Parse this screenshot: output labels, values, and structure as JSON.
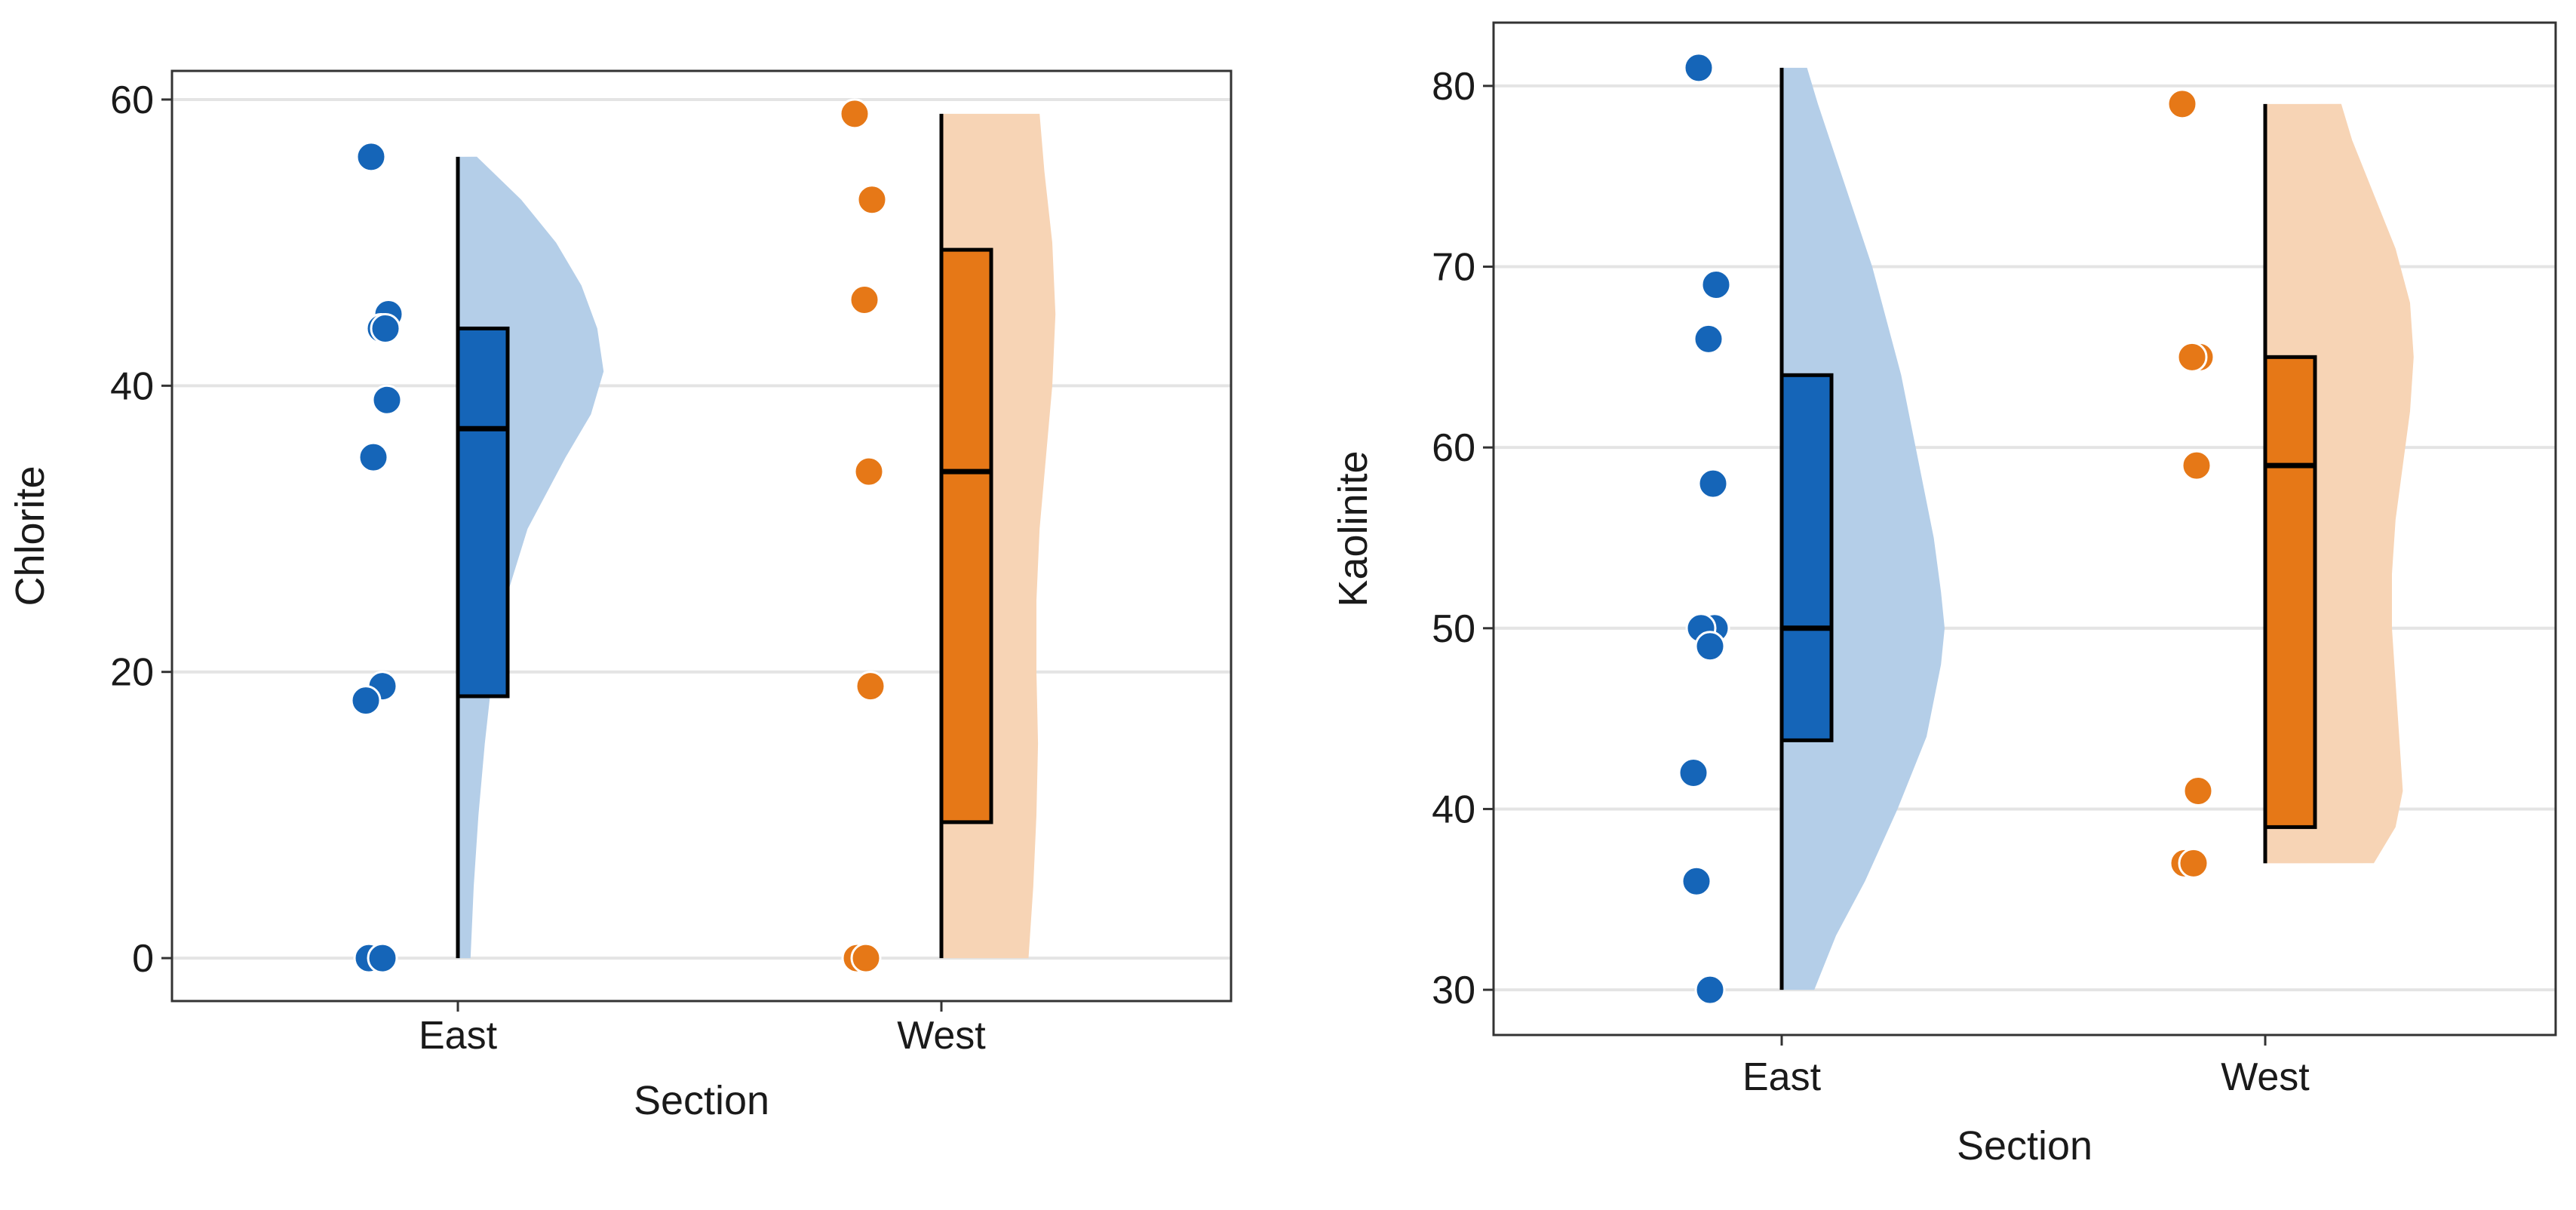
{
  "colors": {
    "East": "#1565b8",
    "West": "#e67817"
  },
  "chart_data": [
    {
      "type": "raincloud",
      "xlabel": "Section",
      "ylabel": "Chlorite",
      "categories": [
        "East",
        "West"
      ],
      "ylim": [
        -3,
        62
      ],
      "yticks": [
        0,
        20,
        40,
        60
      ],
      "grid": true,
      "series": [
        {
          "name": "East",
          "points": [
            56,
            45,
            44,
            44,
            39,
            35,
            19,
            18,
            0,
            0
          ],
          "box": {
            "min": 0,
            "q1": 18.3,
            "median": 37,
            "q3": 44,
            "max": 56
          },
          "density": {
            "y": [
              0,
              5,
              10,
              15,
              20,
              25,
              30,
              35,
              38,
              41,
              44,
              47,
              50,
              53,
              56
            ],
            "width": [
              0.08,
              0.1,
              0.13,
              0.17,
              0.22,
              0.3,
              0.44,
              0.68,
              0.84,
              0.92,
              0.88,
              0.78,
              0.62,
              0.4,
              0.12
            ]
          }
        },
        {
          "name": "West",
          "points": [
            59,
            53,
            46,
            34,
            19,
            0,
            0
          ],
          "box": {
            "min": 0,
            "q1": 9.5,
            "median": 34,
            "q3": 49.5,
            "max": 59
          },
          "density": {
            "y": [
              0,
              5,
              10,
              15,
              20,
              25,
              30,
              35,
              40,
              45,
              50,
              55,
              59
            ],
            "width": [
              0.55,
              0.58,
              0.6,
              0.61,
              0.6,
              0.6,
              0.62,
              0.66,
              0.7,
              0.72,
              0.7,
              0.65,
              0.62
            ]
          }
        }
      ]
    },
    {
      "type": "raincloud",
      "xlabel": "Section",
      "ylabel": "Kaolinite",
      "categories": [
        "East",
        "West"
      ],
      "ylim": [
        27.5,
        83.5
      ],
      "yticks": [
        30,
        40,
        50,
        60,
        70,
        80
      ],
      "grid": true,
      "series": [
        {
          "name": "East",
          "points": [
            81,
            69,
            66,
            58,
            50,
            50,
            49,
            42,
            36,
            30
          ],
          "box": {
            "min": 30,
            "q1": 43.8,
            "median": 50,
            "q3": 64,
            "max": 81
          },
          "density": {
            "y": [
              30,
              33,
              36,
              40,
              44,
              48,
              50,
              52,
              55,
              58,
              61,
              64,
              67,
              70,
              73,
              76,
              79,
              81
            ],
            "width": [
              0.18,
              0.3,
              0.46,
              0.64,
              0.8,
              0.88,
              0.9,
              0.88,
              0.84,
              0.78,
              0.72,
              0.66,
              0.58,
              0.5,
              0.4,
              0.3,
              0.2,
              0.14
            ]
          }
        },
        {
          "name": "West",
          "points": [
            79,
            65,
            65,
            59,
            41,
            37,
            37
          ],
          "box": {
            "min": 37,
            "q1": 39,
            "median": 59,
            "q3": 65,
            "max": 79
          },
          "density": {
            "y": [
              37,
              39,
              41,
              44,
              47,
              50,
              53,
              56,
              59,
              62,
              65,
              68,
              71,
              74,
              77,
              79
            ],
            "width": [
              0.6,
              0.72,
              0.76,
              0.74,
              0.72,
              0.7,
              0.7,
              0.72,
              0.76,
              0.8,
              0.82,
              0.8,
              0.72,
              0.6,
              0.48,
              0.42
            ]
          }
        }
      ]
    }
  ]
}
